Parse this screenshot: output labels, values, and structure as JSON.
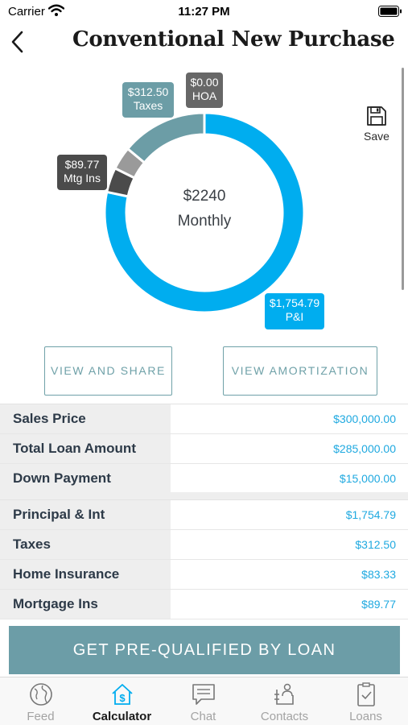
{
  "status": {
    "carrier": "Carrier",
    "time": "11:27 PM"
  },
  "header": {
    "title": "Conventional New Purchase"
  },
  "chart_data": {
    "type": "pie",
    "donut": true,
    "center_value": "$2240",
    "center_label": "Monthly",
    "slices": [
      {
        "label": "P&I",
        "display": "$1,754.79",
        "value": 1754.79,
        "color": "#00adef"
      },
      {
        "label": "Mtg Ins",
        "display": "$89.77",
        "value": 89.77,
        "color": "#4b4b4b"
      },
      {
        "label": "",
        "display": "",
        "value": 83.33,
        "color": "#9a9a9a"
      },
      {
        "label": "Taxes",
        "display": "$312.50",
        "value": 312.5,
        "color": "#6c9da6"
      },
      {
        "label": "HOA",
        "display": "$0.00",
        "value": 0,
        "color": "#676767"
      }
    ]
  },
  "save": {
    "label": "Save",
    "icon": "floppy-disk-icon"
  },
  "actions": {
    "view_share": "VIEW AND SHARE",
    "view_amortization": "VIEW AMORTIZATION"
  },
  "loan_rows": [
    {
      "label": "Sales Price",
      "value": "$300,000.00"
    },
    {
      "label": "Total Loan Amount",
      "value": "$285,000.00"
    },
    {
      "label": "Down Payment",
      "value": "$15,000.00"
    }
  ],
  "payment_rows": [
    {
      "label": "Principal & Int",
      "value": "$1,754.79"
    },
    {
      "label": "Taxes",
      "value": "$312.50"
    },
    {
      "label": "Home Insurance",
      "value": "$83.33"
    },
    {
      "label": "Mortgage Ins",
      "value": "$89.77"
    }
  ],
  "cta": {
    "label": "GET PRE-QUALIFIED BY LOAN"
  },
  "tabs": [
    {
      "label": "Feed",
      "icon": "globe-icon",
      "active": false
    },
    {
      "label": "Calculator",
      "icon": "house-dollar-icon",
      "active": true
    },
    {
      "label": "Chat",
      "icon": "chat-bubble-icon",
      "active": false
    },
    {
      "label": "Contacts",
      "icon": "contact-card-icon",
      "active": false
    },
    {
      "label": "Loans",
      "icon": "document-check-icon",
      "active": false
    }
  ],
  "colors": {
    "accent": "#6c9da6",
    "value_blue": "#1fa9e0",
    "pi_blue": "#00adef"
  }
}
